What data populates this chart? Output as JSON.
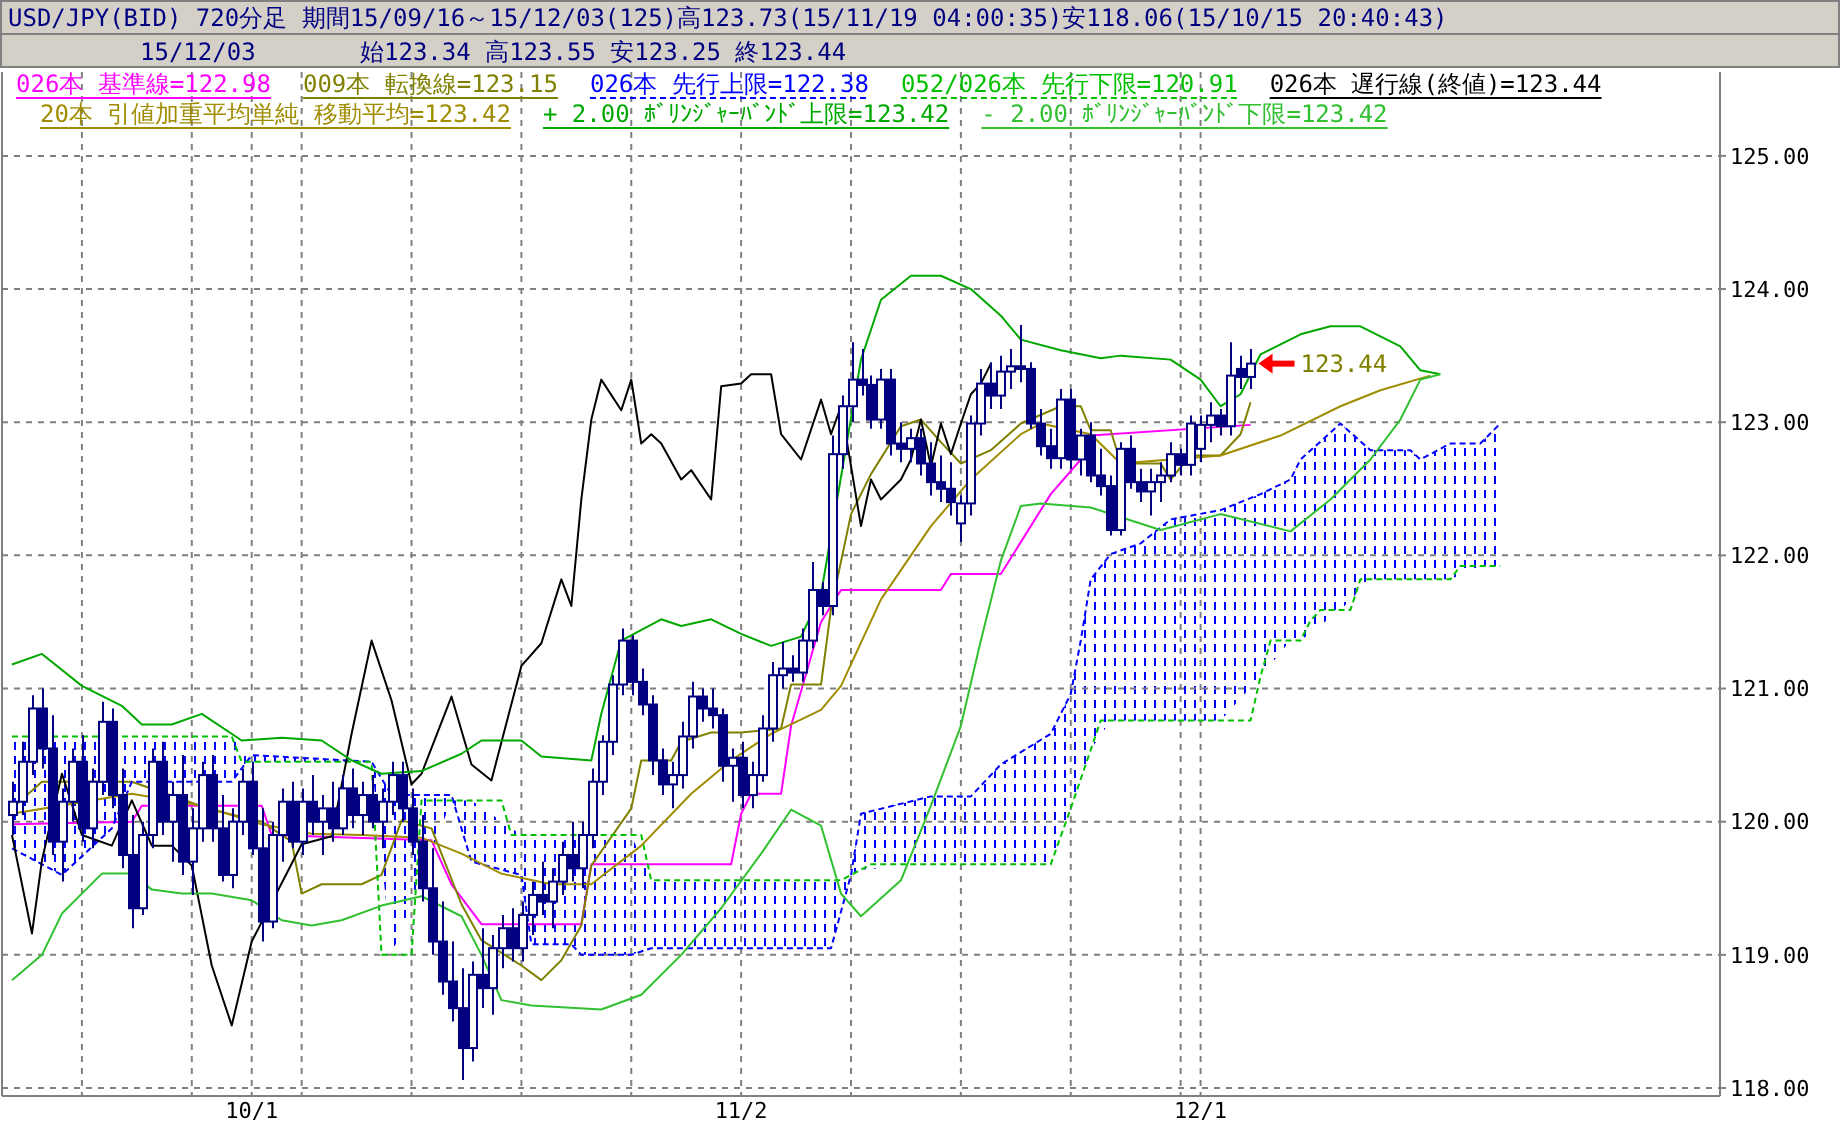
{
  "chart_data": {
    "type": "candlestick",
    "title": "USD/JPY(BID) 720分足 期間15/09/16～15/12/03(125)高123.73(15/11/19 04:00:35)安118.06(15/10/15 20:40:43)",
    "subtitle": "15/12/03",
    "annotations": [
      "始123.34 高123.55 安123.25 終123.44",
      "123.44"
    ],
    "color": "#000080",
    "categories": [
      null,
      null,
      null,
      null,
      null,
      null,
      null,
      null,
      null,
      null,
      null,
      null,
      null,
      null,
      null,
      null,
      null,
      null,
      null,
      null,
      null,
      null,
      null,
      null,
      "10/1",
      null,
      null,
      null,
      null,
      null,
      null,
      null,
      null,
      null,
      null,
      null,
      null,
      null,
      null,
      null,
      null,
      null,
      null,
      null,
      null,
      null,
      null,
      null,
      null,
      null,
      null,
      null,
      null,
      null,
      null,
      null,
      null,
      null,
      null,
      null,
      null,
      null,
      null,
      null,
      null,
      null,
      null,
      null,
      null,
      null,
      null,
      null,
      null,
      "11/2",
      null,
      null,
      null,
      null,
      null,
      null,
      null,
      null,
      null,
      null,
      null,
      null,
      null,
      null,
      null,
      null,
      null,
      null,
      null,
      null,
      null,
      null,
      null,
      null,
      null,
      null,
      null,
      null,
      null,
      null,
      null,
      null,
      null,
      null,
      null,
      null,
      null,
      null,
      null,
      null,
      null,
      null,
      null,
      null,
      null,
      "12/1",
      null,
      null,
      null,
      null,
      null,
      null,
      null,
      null,
      null,
      null,
      null,
      null,
      null,
      null,
      null,
      null,
      null,
      null,
      null,
      null,
      null,
      null,
      null,
      null,
      null,
      null,
      null,
      null,
      null,
      null
    ],
    "ohlc": [
      [
        120.05,
        120.3,
        119.9,
        120.15
      ],
      [
        120.15,
        120.6,
        120.05,
        120.45
      ],
      [
        120.45,
        120.95,
        120.35,
        120.85
      ],
      [
        120.85,
        121.0,
        120.4,
        120.55
      ],
      [
        120.55,
        120.8,
        119.75,
        119.85
      ],
      [
        119.85,
        120.25,
        119.55,
        120.15
      ],
      [
        120.15,
        120.55,
        120.0,
        120.45
      ],
      [
        120.45,
        120.65,
        119.85,
        119.95
      ],
      [
        119.95,
        120.4,
        119.8,
        120.3
      ],
      [
        120.3,
        120.9,
        120.2,
        120.75
      ],
      [
        120.75,
        120.85,
        120.1,
        120.2
      ],
      [
        120.2,
        120.4,
        119.65,
        119.75
      ],
      [
        119.75,
        120.05,
        119.2,
        119.35
      ],
      [
        119.35,
        120.0,
        119.3,
        119.9
      ],
      [
        119.9,
        120.55,
        119.8,
        120.45
      ],
      [
        120.45,
        120.6,
        119.9,
        120.0
      ],
      [
        120.0,
        120.3,
        119.7,
        120.2
      ],
      [
        120.2,
        120.5,
        119.6,
        119.7
      ],
      [
        119.7,
        120.1,
        119.45,
        119.95
      ],
      [
        119.95,
        120.45,
        119.85,
        120.35
      ],
      [
        120.35,
        120.5,
        119.85,
        119.95
      ],
      [
        119.95,
        120.2,
        119.55,
        119.6
      ],
      [
        119.6,
        120.1,
        119.5,
        120.0
      ],
      [
        120.0,
        120.4,
        119.9,
        120.3
      ],
      [
        120.3,
        120.45,
        119.75,
        119.8
      ],
      [
        119.8,
        120.1,
        119.1,
        119.25
      ],
      [
        119.25,
        120.0,
        119.2,
        119.9
      ],
      [
        119.9,
        120.25,
        119.7,
        120.15
      ],
      [
        120.15,
        120.3,
        119.8,
        119.85
      ],
      [
        119.85,
        120.25,
        119.75,
        120.15
      ],
      [
        120.15,
        120.35,
        119.9,
        120.0
      ],
      [
        120.0,
        120.2,
        119.75,
        120.1
      ],
      [
        120.1,
        120.3,
        119.85,
        119.95
      ],
      [
        119.95,
        120.35,
        119.9,
        120.25
      ],
      [
        120.25,
        120.4,
        119.95,
        120.05
      ],
      [
        120.05,
        120.3,
        119.9,
        120.2
      ],
      [
        120.2,
        120.35,
        119.95,
        120.0
      ],
      [
        120.0,
        120.25,
        119.8,
        120.15
      ],
      [
        120.15,
        120.45,
        120.05,
        120.35
      ],
      [
        120.35,
        120.45,
        120.0,
        120.1
      ],
      [
        120.1,
        120.25,
        119.75,
        119.85
      ],
      [
        119.85,
        120.05,
        119.4,
        119.5
      ],
      [
        119.5,
        119.8,
        119.0,
        119.1
      ],
      [
        119.1,
        119.4,
        118.7,
        118.8
      ],
      [
        118.8,
        119.1,
        118.5,
        118.6
      ],
      [
        118.6,
        118.9,
        118.06,
        118.3
      ],
      [
        118.3,
        118.95,
        118.2,
        118.85
      ],
      [
        118.85,
        119.2,
        118.6,
        118.75
      ],
      [
        118.75,
        119.15,
        118.55,
        119.05
      ],
      [
        119.05,
        119.3,
        118.9,
        119.2
      ],
      [
        119.2,
        119.35,
        118.95,
        119.05
      ],
      [
        119.05,
        119.4,
        118.95,
        119.3
      ],
      [
        119.3,
        119.55,
        119.15,
        119.45
      ],
      [
        119.45,
        119.7,
        119.3,
        119.4
      ],
      [
        119.4,
        119.65,
        119.2,
        119.55
      ],
      [
        119.55,
        119.85,
        119.45,
        119.75
      ],
      [
        119.75,
        120.0,
        119.55,
        119.65
      ],
      [
        119.65,
        120.0,
        119.5,
        119.9
      ],
      [
        119.9,
        120.4,
        119.8,
        120.3
      ],
      [
        120.3,
        120.65,
        120.2,
        120.6
      ],
      [
        120.6,
        121.1,
        120.5,
        121.03
      ],
      [
        121.03,
        121.45,
        120.95,
        121.36
      ],
      [
        121.36,
        121.4,
        120.95,
        121.05
      ],
      [
        121.05,
        121.15,
        120.8,
        120.88
      ],
      [
        120.88,
        120.95,
        120.35,
        120.46
      ],
      [
        120.46,
        120.55,
        120.2,
        120.28
      ],
      [
        120.28,
        120.45,
        120.1,
        120.35
      ],
      [
        120.35,
        120.75,
        120.25,
        120.64
      ],
      [
        120.64,
        121.05,
        120.55,
        120.94
      ],
      [
        120.94,
        121.0,
        120.75,
        120.85
      ],
      [
        120.85,
        121.0,
        120.7,
        120.8
      ],
      [
        120.8,
        120.85,
        120.3,
        120.42
      ],
      [
        120.42,
        120.55,
        120.15,
        120.48
      ],
      [
        120.48,
        120.6,
        120.1,
        120.2
      ],
      [
        120.2,
        120.45,
        120.1,
        120.35
      ],
      [
        120.35,
        120.8,
        120.3,
        120.7
      ],
      [
        120.7,
        121.2,
        120.6,
        121.1
      ],
      [
        121.1,
        121.35,
        121.0,
        121.15
      ],
      [
        121.15,
        121.25,
        121.05,
        121.12
      ],
      [
        121.12,
        121.45,
        121.05,
        121.36
      ],
      [
        121.36,
        121.95,
        121.3,
        121.74
      ],
      [
        121.74,
        121.8,
        121.55,
        121.62
      ],
      [
        121.62,
        122.9,
        121.55,
        122.76
      ],
      [
        122.76,
        123.2,
        122.65,
        123.12
      ],
      [
        123.12,
        123.6,
        123.0,
        123.32
      ],
      [
        123.32,
        123.55,
        123.2,
        123.28
      ],
      [
        123.28,
        123.35,
        122.95,
        123.02
      ],
      [
        123.02,
        123.4,
        122.95,
        123.32
      ],
      [
        123.32,
        123.4,
        122.75,
        122.84
      ],
      [
        122.84,
        123.0,
        122.7,
        122.8
      ],
      [
        122.8,
        122.95,
        122.7,
        122.88
      ],
      [
        122.88,
        122.95,
        122.6,
        122.69
      ],
      [
        122.69,
        122.85,
        122.45,
        122.55
      ],
      [
        122.55,
        122.75,
        122.4,
        122.5
      ],
      [
        122.5,
        122.7,
        122.3,
        122.4
      ],
      [
        122.24,
        122.45,
        122.1,
        122.39
      ],
      [
        122.39,
        123.05,
        122.3,
        122.99
      ],
      [
        122.99,
        123.4,
        122.9,
        123.29
      ],
      [
        123.29,
        123.45,
        123.1,
        123.2
      ],
      [
        123.2,
        123.5,
        123.1,
        123.38
      ],
      [
        123.38,
        123.55,
        123.25,
        123.42
      ],
      [
        123.42,
        123.73,
        123.3,
        123.4
      ],
      [
        123.4,
        123.45,
        122.95,
        122.99
      ],
      [
        122.99,
        123.1,
        122.75,
        122.82
      ],
      [
        122.82,
        122.95,
        122.65,
        122.73
      ],
      [
        122.73,
        123.25,
        122.65,
        123.17
      ],
      [
        123.17,
        123.25,
        122.65,
        122.72
      ],
      [
        122.72,
        122.95,
        122.6,
        122.9
      ],
      [
        122.9,
        123.0,
        122.55,
        122.6
      ],
      [
        122.6,
        122.8,
        122.45,
        122.52
      ],
      [
        122.52,
        122.6,
        122.15,
        122.19
      ],
      [
        122.19,
        122.85,
        122.15,
        122.8
      ],
      [
        122.8,
        122.9,
        122.5,
        122.55
      ],
      [
        122.55,
        122.65,
        122.4,
        122.48
      ],
      [
        122.48,
        122.65,
        122.3,
        122.55
      ],
      [
        122.55,
        122.7,
        122.4,
        122.6
      ],
      [
        122.6,
        122.85,
        122.55,
        122.76
      ],
      [
        122.76,
        122.8,
        122.6,
        122.68
      ],
      [
        122.68,
        123.05,
        122.6,
        122.99
      ],
      [
        122.8,
        123.05,
        122.7,
        122.98
      ],
      [
        122.98,
        123.15,
        122.85,
        123.05
      ],
      [
        123.05,
        123.1,
        122.9,
        122.97
      ],
      [
        122.97,
        123.6,
        122.9,
        123.35
      ],
      [
        123.4,
        123.5,
        123.25,
        123.34
      ],
      [
        123.34,
        123.55,
        123.25,
        123.44
      ],
      null,
      null,
      null,
      null,
      null,
      null,
      null,
      null,
      null,
      null,
      null,
      null,
      null,
      null,
      null,
      null,
      null,
      null,
      null,
      null,
      null,
      null,
      null,
      null,
      null
    ],
    "series": [
      {
        "name": "026本 基準線=122.98",
        "type": "line",
        "color": "#ff00ff",
        "values": [
          119.98,
          null,
          null,
          null,
          null,
          null,
          null,
          null,
          null,
          null,
          null,
          null,
          120.0,
          120.12,
          null,
          null,
          null,
          null,
          null,
          null,
          null,
          null,
          null,
          null,
          null,
          120.12,
          119.9,
          null,
          null,
          null,
          null,
          null,
          null,
          null,
          null,
          null,
          null,
          null,
          null,
          null,
          null,
          null,
          119.86,
          null,
          119.53,
          null,
          null,
          119.23,
          null,
          null,
          null,
          null,
          null,
          null,
          null,
          null,
          null,
          119.23,
          119.68,
          null,
          null,
          null,
          null,
          null,
          null,
          null,
          null,
          null,
          null,
          null,
          null,
          null,
          119.68,
          120.06,
          120.21,
          null,
          null,
          120.21,
          120.72,
          null,
          null,
          121.5,
          null,
          121.74,
          null,
          null,
          null,
          null,
          null,
          null,
          null,
          null,
          null,
          121.74,
          121.86,
          null,
          null,
          null,
          null,
          121.86,
          null,
          null,
          null,
          null,
          122.46,
          null,
          null,
          122.72,
          122.9,
          null,
          null,
          null,
          null,
          null,
          null,
          null,
          null,
          null,
          null,
          null,
          null,
          null,
          null,
          null,
          122.98,
          null,
          null,
          null,
          null,
          null,
          null,
          null,
          null,
          null,
          null,
          null,
          null,
          null,
          null,
          null,
          null,
          null,
          null,
          null,
          null,
          null,
          null,
          null,
          null,
          null
        ]
      },
      {
        "name": "009本 転換線=123.15",
        "type": "line",
        "color": "#808000",
        "values": [
          120.1,
          null,
          null,
          120.3,
          null,
          null,
          null,
          null,
          null,
          null,
          null,
          null,
          120.3,
          null,
          null,
          null,
          null,
          null,
          null,
          null,
          120.09,
          null,
          null,
          null,
          null,
          120.0,
          null,
          null,
          119.85,
          119.46,
          null,
          119.53,
          null,
          null,
          null,
          119.53,
          null,
          119.6,
          null,
          120.01,
          null,
          null,
          119.95,
          null,
          null,
          119.38,
          null,
          119.11,
          null,
          null,
          null,
          118.92,
          null,
          118.81,
          null,
          118.96,
          null,
          119.22,
          119.67,
          null,
          null,
          null,
          120.1,
          120.46,
          null,
          null,
          120.46,
          120.6,
          null,
          null,
          120.67,
          null,
          null,
          120.67,
          null,
          null,
          null,
          120.7,
          121.03,
          null,
          null,
          121.03,
          121.6,
          null,
          122.31,
          null,
          122.61,
          null,
          null,
          122.97,
          null,
          123.02,
          null,
          122.85,
          null,
          122.69,
          null,
          null,
          122.79,
          null,
          null,
          122.99,
          null,
          null,
          null,
          123.12,
          null,
          123.12,
          122.94,
          null,
          122.94,
          122.69,
          null,
          null,
          null,
          122.69,
          122.57,
          null,
          122.75,
          null,
          null,
          122.75,
          null,
          122.91,
          123.15,
          null,
          null,
          null,
          null,
          null,
          null,
          null,
          null,
          null,
          null,
          null,
          null,
          null,
          null,
          null,
          null,
          null,
          null,
          null,
          null,
          null,
          null,
          null,
          null,
          null
        ]
      },
      {
        "name": "026本 先行上限=122.38",
        "type": "line",
        "color": "#0000ff",
        "line_style": "dashed",
        "values": [
          119.8,
          null,
          null,
          null,
          null,
          119.6,
          null,
          null,
          null,
          null,
          119.95,
          null,
          120.3,
          null,
          null,
          null,
          null,
          null,
          null,
          null,
          null,
          null,
          120.3,
          null,
          120.5,
          null,
          null,
          null,
          null,
          null,
          null,
          null,
          null,
          null,
          null,
          null,
          120.45,
          null,
          120.2,
          null,
          null,
          null,
          null,
          null,
          120.2,
          null,
          119.7,
          null,
          null,
          null,
          null,
          119.6,
          119.08,
          null,
          null,
          null,
          119.08,
          119.0,
          null,
          null,
          null,
          null,
          119.0,
          null,
          119.05,
          null,
          null,
          null,
          null,
          null,
          null,
          null,
          null,
          null,
          null,
          null,
          null,
          null,
          null,
          null,
          null,
          null,
          119.05,
          null,
          119.6,
          120.06,
          null,
          null,
          null,
          null,
          null,
          null,
          120.19,
          null,
          null,
          null,
          120.19,
          null,
          null,
          120.43,
          null,
          null,
          null,
          null,
          120.66,
          null,
          120.96,
          121.36,
          121.82,
          null,
          122.01,
          null,
          null,
          122.09,
          null,
          null,
          122.27,
          null,
          null,
          null,
          null,
          122.34,
          null,
          null,
          null,
          122.46,
          null,
          null,
          122.57,
          122.72,
          null,
          null,
          null,
          122.99,
          null,
          null,
          122.79,
          null,
          null,
          null,
          122.79,
          122.72,
          null,
          null,
          122.84,
          null,
          null,
          122.84,
          null,
          122.99
        ],
        "upper": [
          119.8,
          null,
          null,
          null,
          null,
          119.6,
          null,
          null,
          null,
          null,
          119.95,
          null,
          120.3,
          null,
          null,
          null,
          null,
          null,
          null,
          null,
          null,
          null,
          120.3,
          null,
          120.5,
          null,
          null,
          null,
          null,
          null,
          null,
          null,
          null,
          null,
          null,
          null,
          120.45,
          null,
          120.2,
          null,
          null,
          null,
          null,
          null,
          120.2,
          null,
          119.7,
          null,
          null,
          null,
          null,
          119.6,
          119.08,
          null,
          null,
          null,
          119.08,
          119.0,
          null,
          null,
          null,
          null,
          119.0,
          null,
          119.05,
          null,
          null,
          null,
          null,
          null,
          null,
          null,
          null,
          null,
          null,
          null,
          null,
          null,
          null,
          null,
          null,
          null,
          119.05,
          null,
          119.6,
          120.06,
          null,
          null,
          null,
          null,
          null,
          null,
          120.19,
          null,
          null,
          null,
          120.19,
          null,
          null,
          120.43,
          null,
          null,
          null,
          null,
          120.66,
          null,
          120.96,
          121.36,
          121.82,
          null,
          122.01,
          null,
          null,
          122.09,
          null,
          null,
          122.27,
          null,
          null,
          null,
          null,
          122.34,
          null,
          null,
          null,
          122.46,
          null,
          null,
          122.57,
          122.72,
          null,
          null,
          null,
          122.99,
          null,
          null,
          122.79,
          null,
          null,
          null,
          122.79,
          122.72,
          null,
          null,
          122.84,
          null,
          null,
          122.84,
          null,
          122.99
        ],
        "lower": [
          120.64,
          null,
          null,
          null,
          null,
          120.64,
          null,
          null,
          null,
          null,
          120.64,
          null,
          120.64,
          null,
          null,
          null,
          null,
          null,
          null,
          null,
          null,
          null,
          120.64,
          null,
          120.45,
          null,
          null,
          null,
          null,
          null,
          null,
          null,
          null,
          null,
          null,
          null,
          120.45,
          null,
          119.0,
          null,
          null,
          null,
          null,
          null,
          120.16,
          null,
          120.16,
          null,
          null,
          null,
          null,
          119.9,
          119.9,
          null,
          null,
          null,
          119.9,
          119.9,
          null,
          null,
          null,
          null,
          119.9,
          null,
          119.56,
          null,
          null,
          null,
          null,
          null,
          null,
          null,
          null,
          null,
          null,
          null,
          null,
          null,
          null,
          null,
          null,
          null,
          119.56,
          null,
          119.6,
          119.64,
          null,
          null,
          null,
          null,
          null,
          null,
          119.68,
          null,
          null,
          null,
          119.68,
          null,
          null,
          119.68,
          null,
          null,
          null,
          null,
          119.68,
          null,
          120.1,
          120.32,
          120.54,
          null,
          120.76,
          null,
          null,
          120.76,
          null,
          null,
          120.76,
          null,
          null,
          null,
          null,
          120.76,
          null,
          null,
          null,
          121.09,
          null,
          null,
          121.36,
          121.36,
          null,
          null,
          null,
          121.59,
          null,
          null,
          121.82,
          null,
          null,
          null,
          121.82,
          121.82,
          null,
          null,
          121.82,
          null,
          null,
          121.92,
          null,
          121.92
        ]
      },
      {
        "name": "052/026本 先行下限=120.91",
        "type": "line",
        "color": "#00c000",
        "line_style": "dashed",
        "values": [
          120.64,
          null,
          null,
          null,
          null,
          null,
          null,
          null,
          null,
          null,
          null,
          null,
          null,
          null,
          null,
          null,
          null,
          null,
          null,
          null,
          null,
          null,
          120.64,
          120.45,
          null,
          null,
          null,
          null,
          null,
          null,
          null,
          null,
          null,
          null,
          null,
          null,
          120.45,
          119.0,
          null,
          null,
          119.0,
          120.16,
          null,
          null,
          null,
          null,
          null,
          null,
          null,
          120.16,
          119.9,
          null,
          null,
          null,
          null,
          null,
          null,
          null,
          null,
          null,
          null,
          null,
          null,
          119.9,
          119.56,
          null,
          null,
          null,
          null,
          null,
          null,
          null,
          null,
          null,
          null,
          null,
          null,
          null,
          null,
          null,
          null,
          null,
          null,
          119.56,
          null,
          null,
          119.68,
          null,
          null,
          null,
          null,
          null,
          null,
          null,
          null,
          null,
          null,
          null,
          null,
          null,
          null,
          null,
          null,
          null,
          119.68,
          null,
          120.1,
          null,
          null,
          120.76,
          null,
          null,
          null,
          null,
          null,
          null,
          null,
          null,
          null,
          null,
          null,
          null,
          null,
          null,
          120.76,
          121.09,
          121.36,
          null,
          null,
          121.36,
          121.51,
          121.59,
          null,
          null,
          121.59,
          121.82,
          null,
          null,
          null,
          null,
          null,
          null,
          null,
          null,
          121.82,
          121.92,
          null,
          null,
          null,
          121.92
        ]
      },
      {
        "name": "026本 遅行線(終値)=123.44",
        "type": "line",
        "color": "#000000",
        "values": [
          119.9,
          null,
          119.16,
          119.71,
          null,
          120.36,
          null,
          119.9,
          null,
          null,
          119.82,
          null,
          120.16,
          null,
          119.82,
          null,
          119.82,
          null,
          119.67,
          null,
          118.92,
          null,
          118.47,
          null,
          119.1,
          null,
          null,
          null,
          null,
          119.83,
          null,
          null,
          119.89,
          null,
          120.66,
          null,
          121.36,
          null,
          120.91,
          null,
          120.28,
          120.36,
          null,
          null,
          120.94,
          null,
          120.43,
          null,
          120.31,
          null,
          null,
          121.17,
          null,
          121.34,
          null,
          121.82,
          121.62,
          122.42,
          123.02,
          123.32,
          null,
          123.09,
          123.32,
          122.84,
          122.91,
          122.84,
          null,
          122.57,
          122.64,
          null,
          122.42,
          123.27,
          null,
          123.29,
          123.36,
          null,
          123.36,
          122.91,
          null,
          122.72,
          null,
          123.17,
          122.91,
          123.12,
          122.67,
          122.22,
          122.57,
          122.42,
          null,
          122.57,
          122.72,
          123.02,
          122.67,
          122.99,
          122.76,
          122.99,
          123.21,
          123.29,
          123.44,
          null,
          null,
          null,
          null,
          null,
          null,
          null,
          null,
          null,
          null,
          null,
          null,
          null,
          null,
          null,
          null,
          null,
          null,
          null,
          null,
          null,
          null,
          null,
          null,
          null,
          null,
          null,
          null,
          null,
          null,
          null,
          null,
          null,
          null,
          null,
          null,
          null,
          null,
          null,
          null,
          null,
          null,
          null,
          null,
          null,
          null,
          null,
          null,
          null,
          null,
          null
        ]
      },
      {
        "name": "20本 引値加重平均単純 移動平均=123.42",
        "type": "line",
        "color": "#a08c00",
        "values": [
          120.06,
          null,
          null,
          null,
          null,
          null,
          null,
          null,
          null,
          null,
          null,
          null,
          120.21,
          null,
          null,
          null,
          null,
          null,
          null,
          120.12,
          null,
          null,
          null,
          null,
          null,
          119.98,
          null,
          null,
          null,
          null,
          119.91,
          null,
          null,
          null,
          null,
          119.9,
          null,
          null,
          null,
          null,
          null,
          119.88,
          null,
          null,
          null,
          119.76,
          null,
          null,
          null,
          119.61,
          null,
          null,
          null,
          null,
          119.53,
          null,
          null,
          null,
          119.53,
          null,
          null,
          null,
          null,
          119.82,
          null,
          null,
          null,
          null,
          120.21,
          null,
          null,
          null,
          120.46,
          null,
          null,
          null,
          120.66,
          null,
          null,
          null,
          null,
          120.84,
          null,
          121.02,
          null,
          null,
          null,
          121.67,
          null,
          null,
          null,
          null,
          122.22,
          null,
          null,
          null,
          122.57,
          null,
          null,
          null,
          null,
          122.91,
          null,
          122.99,
          null,
          null,
          null,
          null,
          122.91,
          null,
          null,
          122.69,
          null,
          null,
          null,
          null,
          122.72,
          null,
          null,
          null,
          null,
          122.75,
          null,
          null,
          null,
          null,
          null,
          122.9,
          null,
          null,
          null,
          null,
          null,
          123.12,
          null,
          null,
          null,
          123.24,
          null,
          null,
          null,
          null,
          123.35,
          null,
          null,
          null,
          null,
          null,
          null,
          null
        ]
      },
      {
        "name": "+ 2.00 ﾎﾞﾘﾝｼﾞｬｰﾊﾞﾝﾄﾞ上限=123.42",
        "type": "line",
        "color": "#00a800",
        "values": [
          121.18,
          null,
          null,
          121.26,
          null,
          null,
          null,
          121.02,
          null,
          null,
          null,
          120.87,
          null,
          120.73,
          null,
          null,
          120.73,
          null,
          null,
          120.81,
          null,
          null,
          null,
          120.61,
          null,
          null,
          null,
          120.63,
          null,
          null,
          null,
          120.61,
          null,
          null,
          120.46,
          null,
          null,
          120.36,
          null,
          null,
          null,
          120.38,
          null,
          null,
          null,
          120.51,
          null,
          120.61,
          null,
          null,
          null,
          120.61,
          null,
          120.49,
          null,
          null,
          null,
          null,
          120.46,
          120.81,
          null,
          121.36,
          null,
          null,
          null,
          121.52,
          null,
          121.47,
          null,
          null,
          121.52,
          null,
          null,
          121.41,
          null,
          null,
          121.32,
          null,
          null,
          121.39,
          null,
          121.71,
          null,
          null,
          null,
          123.47,
          null,
          123.92,
          null,
          null,
          124.1,
          null,
          null,
          124.1,
          null,
          null,
          124.0,
          null,
          null,
          123.8,
          null,
          123.62,
          null,
          null,
          null,
          123.54,
          null,
          null,
          null,
          123.48,
          null,
          123.5,
          null,
          null,
          null,
          null,
          123.47,
          null,
          null,
          123.32,
          null,
          123.12,
          null,
          123.21,
          null,
          123.51,
          null,
          null,
          null,
          123.66,
          null,
          null,
          123.72,
          null,
          null,
          123.72,
          null,
          null,
          null,
          123.57,
          null,
          123.39,
          null,
          123.36,
          null,
          null,
          null,
          null,
          null,
          null
        ]
      },
      {
        "name": "- 2.00 ﾎﾞﾘﾝｼﾞｬｰﾊﾞﾝﾄﾞ下限=123.42",
        "type": "line",
        "color": "#30c030",
        "values": [
          118.81,
          null,
          null,
          119.0,
          null,
          119.31,
          null,
          null,
          null,
          119.61,
          null,
          null,
          119.61,
          null,
          119.49,
          null,
          null,
          119.46,
          null,
          null,
          119.46,
          null,
          null,
          null,
          119.41,
          null,
          null,
          119.26,
          null,
          null,
          119.22,
          null,
          null,
          119.26,
          null,
          null,
          null,
          119.37,
          null,
          null,
          null,
          119.44,
          null,
          null,
          null,
          119.29,
          null,
          119.0,
          null,
          118.66,
          null,
          null,
          118.62,
          null,
          null,
          null,
          null,
          null,
          null,
          118.59,
          null,
          null,
          null,
          118.7,
          null,
          null,
          null,
          119.0,
          null,
          null,
          null,
          119.35,
          null,
          null,
          null,
          119.76,
          null,
          null,
          120.09,
          null,
          null,
          119.97,
          null,
          119.46,
          null,
          119.29,
          null,
          null,
          null,
          119.56,
          null,
          null,
          120.12,
          null,
          null,
          120.72,
          null,
          121.36,
          null,
          121.96,
          null,
          122.37,
          null,
          122.39,
          null,
          null,
          null,
          null,
          122.36,
          null,
          null,
          null,
          null,
          null,
          null,
          122.19,
          null,
          null,
          null,
          null,
          null,
          122.31,
          null,
          null,
          null,
          null,
          null,
          null,
          122.18,
          null,
          null,
          null,
          122.42,
          null,
          null,
          null,
          122.72,
          null,
          null,
          123.02,
          null,
          123.32,
          null,
          123.36,
          null,
          null,
          null,
          null,
          null,
          null
        ]
      }
    ],
    "ylim": [
      117.94,
      125.63
    ],
    "yticks": [
      {
        "value": 118,
        "label": "118.00"
      },
      {
        "value": 119,
        "label": "119.00"
      },
      {
        "value": 120,
        "label": "120.00"
      },
      {
        "value": 121,
        "label": "121.00"
      },
      {
        "value": 122,
        "label": "122.00"
      },
      {
        "value": 123,
        "label": "123.00"
      },
      {
        "value": 124,
        "label": "124.00"
      },
      {
        "value": 125,
        "label": "125.00"
      }
    ],
    "grid": true,
    "legend": "top left"
  }
}
